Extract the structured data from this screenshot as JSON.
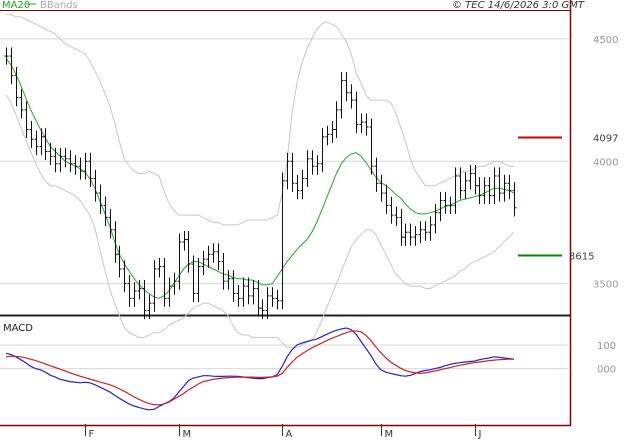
{
  "header": {
    "ma_label": "MA20",
    "bands_label": "BBands",
    "copyright": "© TEC 14/6/2026 3:0 GMT"
  },
  "colors": {
    "ma": "#22aa22",
    "bands": "#c8c8c8",
    "price": "#111111",
    "resistance": "#cc0000",
    "support": "#008800",
    "macd": "#2222cc",
    "signal": "#cc2222",
    "grid": "#d8d8d8",
    "frame": "#8b0000"
  },
  "chart_data": [
    {
      "type": "ohlc",
      "yticks": [
        "4500",
        "4000",
        "3500"
      ],
      "ylim": [
        3380,
        4610
      ],
      "xticks": [
        "F",
        "M",
        "A",
        "M",
        "J"
      ],
      "xtick_index": [
        16,
        35,
        56,
        76,
        95
      ],
      "levels": [
        {
          "label": "4097",
          "value": 4097,
          "role": "resistance"
        },
        {
          "label": "3615",
          "value": 3615,
          "role": "support"
        }
      ],
      "close": [
        4430,
        4350,
        4260,
        4210,
        4130,
        4090,
        4060,
        4100,
        4040,
        4020,
        3990,
        4020,
        4010,
        3990,
        3980,
        3960,
        4000,
        3930,
        3870,
        3820,
        3770,
        3720,
        3620,
        3560,
        3500,
        3440,
        3470,
        3480,
        3390,
        3420,
        3560,
        3570,
        3440,
        3490,
        3510,
        3670,
        3680,
        3580,
        3460,
        3570,
        3600,
        3620,
        3630,
        3590,
        3510,
        3520,
        3460,
        3440,
        3490,
        3450,
        3480,
        3400,
        3390,
        3450,
        3440,
        3430,
        3920,
        4000,
        3910,
        3880,
        3930,
        4010,
        3980,
        3990,
        4100,
        4110,
        4130,
        4210,
        4330,
        4280,
        4250,
        4150,
        4160,
        4140,
        3980,
        3910,
        3870,
        3820,
        3780,
        3770,
        3690,
        3710,
        3690,
        3700,
        3720,
        3710,
        3740,
        3790,
        3840,
        3820,
        3820,
        3940,
        3880,
        3920,
        3950,
        3900,
        3860,
        3900,
        3860,
        3940,
        3870,
        3910,
        3880,
        3810
      ],
      "ma20": [
        4420,
        4395,
        4355,
        4310,
        4260,
        4210,
        4170,
        4130,
        4095,
        4060,
        4040,
        4020,
        4000,
        3990,
        3980,
        3970,
        3955,
        3930,
        3890,
        3840,
        3790,
        3735,
        3675,
        3620,
        3580,
        3550,
        3520,
        3495,
        3475,
        3460,
        3445,
        3440,
        3450,
        3470,
        3500,
        3530,
        3560,
        3580,
        3590,
        3590,
        3580,
        3570,
        3560,
        3550,
        3540,
        3535,
        3525,
        3520,
        3520,
        3515,
        3515,
        3505,
        3495,
        3495,
        3500,
        3530,
        3560,
        3590,
        3615,
        3640,
        3660,
        3680,
        3710,
        3750,
        3800,
        3850,
        3900,
        3950,
        3990,
        4015,
        4030,
        4035,
        4020,
        3995,
        3965,
        3935,
        3915,
        3900,
        3885,
        3865,
        3850,
        3825,
        3805,
        3790,
        3785,
        3785,
        3790,
        3795,
        3805,
        3815,
        3820,
        3830,
        3840,
        3845,
        3850,
        3855,
        3860,
        3870,
        3880,
        3890,
        3890,
        3885,
        3880,
        3870
      ],
      "bb_upper": [
        4600,
        4600,
        4590,
        4590,
        4580,
        4570,
        4560,
        4550,
        4540,
        4530,
        4520,
        4500,
        4480,
        4470,
        4460,
        4450,
        4440,
        4410,
        4370,
        4330,
        4280,
        4230,
        4160,
        4080,
        4010,
        3980,
        3960,
        3950,
        3950,
        3960,
        3950,
        3940,
        3880,
        3830,
        3800,
        3780,
        3780,
        3780,
        3780,
        3780,
        3770,
        3760,
        3750,
        3750,
        3740,
        3740,
        3740,
        3740,
        3750,
        3760,
        3760,
        3760,
        3760,
        3760,
        3770,
        3780,
        3870,
        4000,
        4200,
        4320,
        4400,
        4460,
        4500,
        4540,
        4560,
        4570,
        4560,
        4550,
        4520,
        4490,
        4440,
        4360,
        4320,
        4270,
        4250,
        4250,
        4250,
        4250,
        4240,
        4200,
        4140,
        4080,
        4010,
        3960,
        3930,
        3900,
        3900,
        3900,
        3910,
        3920,
        3930,
        3940,
        3950,
        3960,
        3960,
        3970,
        3980,
        3980,
        3990,
        4000,
        4000,
        3990,
        3980,
        3980
      ],
      "bb_lower": [
        4270,
        4240,
        4190,
        4140,
        4090,
        4040,
        3990,
        3950,
        3920,
        3900,
        3900,
        3890,
        3880,
        3870,
        3860,
        3840,
        3810,
        3780,
        3730,
        3640,
        3560,
        3480,
        3420,
        3370,
        3320,
        3300,
        3290,
        3280,
        3280,
        3290,
        3300,
        3300,
        3310,
        3330,
        3340,
        3350,
        3360,
        3380,
        3400,
        3410,
        3420,
        3420,
        3410,
        3400,
        3390,
        3370,
        3330,
        3300,
        3290,
        3290,
        3280,
        3280,
        3280,
        3280,
        3280,
        3280,
        3260,
        3240,
        3240,
        3240,
        3250,
        3260,
        3270,
        3300,
        3350,
        3400,
        3450,
        3500,
        3550,
        3600,
        3650,
        3680,
        3700,
        3720,
        3720,
        3700,
        3660,
        3620,
        3580,
        3540,
        3520,
        3500,
        3490,
        3490,
        3490,
        3480,
        3480,
        3490,
        3500,
        3510,
        3520,
        3530,
        3550,
        3560,
        3580,
        3590,
        3600,
        3610,
        3620,
        3630,
        3650,
        3670,
        3690,
        3710
      ]
    },
    {
      "type": "line",
      "title": "MACD",
      "yticks": [
        "100",
        "000"
      ],
      "ylim": [
        -230,
        210
      ],
      "series": [
        {
          "role": "macd",
          "values": [
            65,
            60,
            50,
            38,
            25,
            10,
            0,
            -5,
            -15,
            -28,
            -36,
            -45,
            -50,
            -55,
            -57,
            -60,
            -58,
            -60,
            -68,
            -78,
            -88,
            -98,
            -112,
            -126,
            -138,
            -150,
            -158,
            -165,
            -170,
            -174,
            -172,
            -160,
            -150,
            -140,
            -125,
            -100,
            -75,
            -50,
            -40,
            -35,
            -30,
            -30,
            -32,
            -33,
            -33,
            -32,
            -32,
            -33,
            -35,
            -38,
            -40,
            -42,
            -42,
            -38,
            -35,
            -25,
            10,
            50,
            80,
            100,
            108,
            115,
            120,
            125,
            135,
            145,
            155,
            162,
            168,
            172,
            165,
            145,
            115,
            85,
            55,
            20,
            -5,
            -15,
            -20,
            -25,
            -30,
            -32,
            -28,
            -20,
            -12,
            -8,
            -5,
            0,
            5,
            12,
            18,
            22,
            25,
            28,
            30,
            32,
            38,
            42,
            45,
            50,
            48,
            45,
            43,
            40
          ]
        },
        {
          "role": "signal",
          "values": [
            50,
            52,
            52,
            50,
            46,
            40,
            34,
            27,
            20,
            12,
            5,
            -3,
            -10,
            -18,
            -25,
            -32,
            -38,
            -44,
            -50,
            -56,
            -62,
            -68,
            -76,
            -86,
            -96,
            -108,
            -120,
            -130,
            -140,
            -148,
            -152,
            -153,
            -150,
            -142,
            -130,
            -118,
            -105,
            -90,
            -78,
            -65,
            -55,
            -50,
            -45,
            -42,
            -40,
            -38,
            -37,
            -36,
            -36,
            -36,
            -36,
            -37,
            -37,
            -36,
            -35,
            -32,
            -20,
            5,
            28,
            48,
            62,
            76,
            88,
            98,
            108,
            118,
            128,
            136,
            144,
            152,
            158,
            160,
            156,
            140,
            118,
            92,
            68,
            46,
            28,
            14,
            2,
            -8,
            -14,
            -18,
            -20,
            -18,
            -14,
            -10,
            -5,
            0,
            4,
            10,
            14,
            18,
            22,
            25,
            28,
            31,
            34,
            36,
            38,
            39,
            40,
            40
          ]
        }
      ]
    }
  ]
}
